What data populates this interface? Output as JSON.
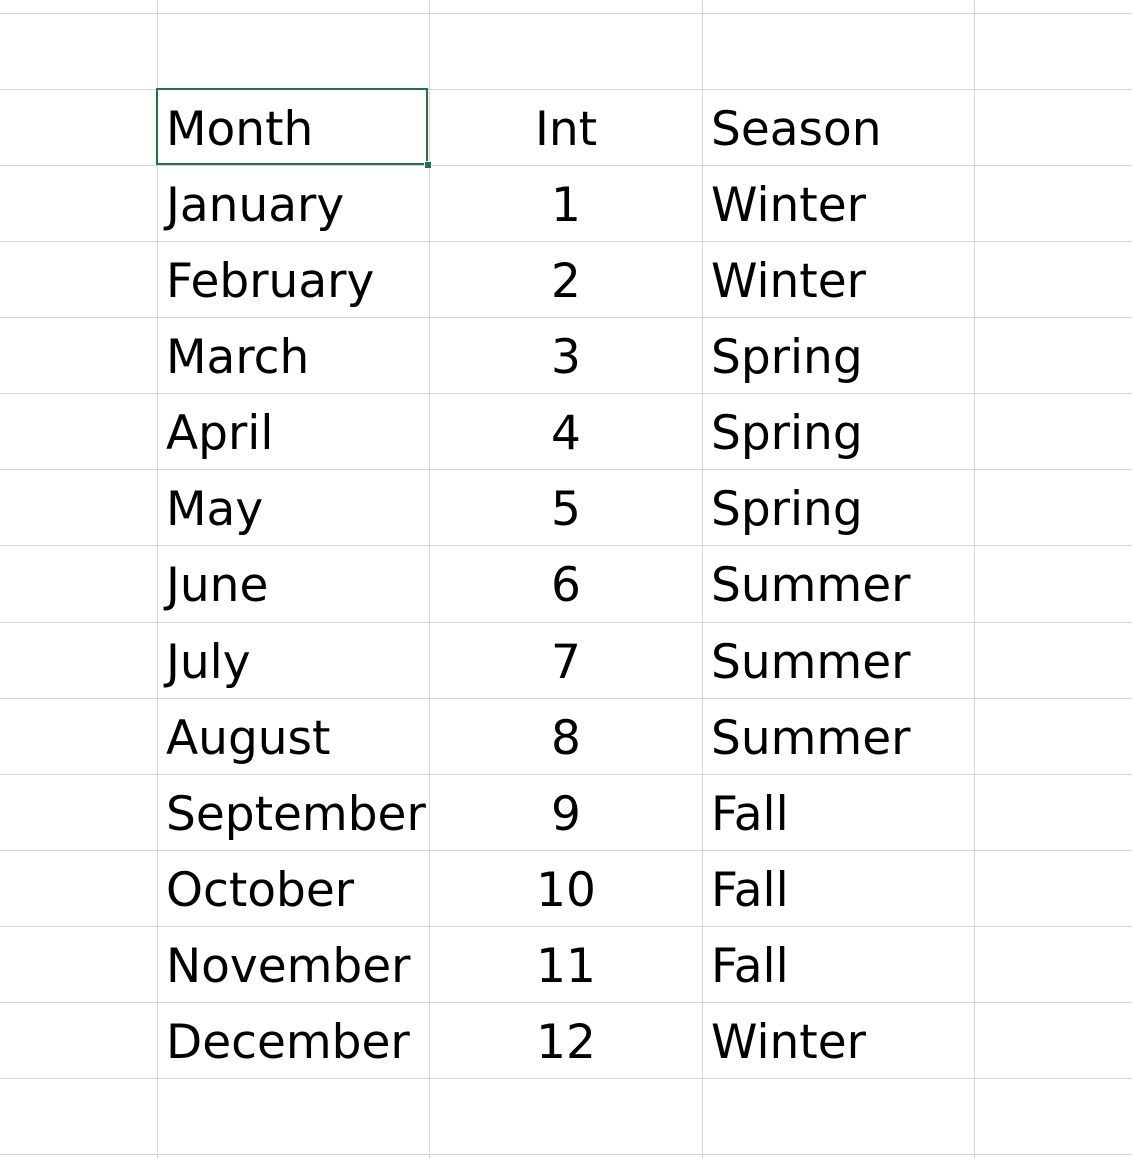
{
  "sheet": {
    "headers": {
      "month": "Month",
      "int": "Int",
      "season": "Season"
    },
    "rows": [
      {
        "month": "January",
        "int": "1",
        "season": "Winter"
      },
      {
        "month": "February",
        "int": "2",
        "season": "Winter"
      },
      {
        "month": "March",
        "int": "3",
        "season": "Spring"
      },
      {
        "month": "April",
        "int": "4",
        "season": "Spring"
      },
      {
        "month": "May",
        "int": "5",
        "season": "Spring"
      },
      {
        "month": "June",
        "int": "6",
        "season": "Summer"
      },
      {
        "month": "July",
        "int": "7",
        "season": "Summer"
      },
      {
        "month": "August",
        "int": "8",
        "season": "Summer"
      },
      {
        "month": "September",
        "int": "9",
        "season": "Fall"
      },
      {
        "month": "October",
        "int": "10",
        "season": "Fall"
      },
      {
        "month": "November",
        "int": "11",
        "season": "Fall"
      },
      {
        "month": "December",
        "int": "12",
        "season": "Winter"
      }
    ],
    "selection_color": "#217346",
    "gridline_color": "#d4d4d4"
  }
}
